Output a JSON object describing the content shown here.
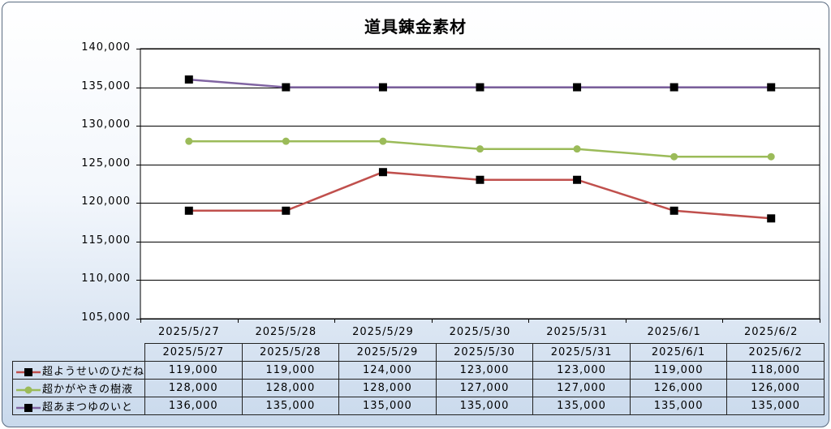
{
  "chart_data": {
    "type": "line",
    "title": "道具錬金素材",
    "x": [
      "2025/5/27",
      "2025/5/28",
      "2025/5/29",
      "2025/5/30",
      "2025/5/31",
      "2025/6/1",
      "2025/6/2"
    ],
    "ylim": [
      105000,
      140000
    ],
    "yticks": [
      "105,000",
      "110,000",
      "115,000",
      "120,000",
      "125,000",
      "130,000",
      "135,000",
      "140,000"
    ],
    "ytick_values": [
      105000,
      110000,
      115000,
      120000,
      125000,
      130000,
      135000,
      140000
    ],
    "grid": true,
    "legend": "data-table",
    "series": [
      {
        "name": "超ようせいのひだね",
        "color": "#c0504d",
        "marker": "square",
        "marker_color": "#000000",
        "values": [
          119000,
          119000,
          124000,
          123000,
          123000,
          119000,
          118000
        ],
        "labels": [
          "119,000",
          "119,000",
          "124,000",
          "123,000",
          "123,000",
          "119,000",
          "118,000"
        ]
      },
      {
        "name": "超かがやきの樹液",
        "color": "#9bbb59",
        "marker": "circle",
        "marker_color": "#9bbb59",
        "values": [
          128000,
          128000,
          128000,
          127000,
          127000,
          126000,
          126000
        ],
        "labels": [
          "128,000",
          "128,000",
          "128,000",
          "127,000",
          "127,000",
          "126,000",
          "126,000"
        ]
      },
      {
        "name": "超あまつゆのいと",
        "color": "#8064a2",
        "marker": "square",
        "marker_color": "#000000",
        "values": [
          136000,
          135000,
          135000,
          135000,
          135000,
          135000,
          135000
        ],
        "labels": [
          "136,000",
          "135,000",
          "135,000",
          "135,000",
          "135,000",
          "135,000",
          "135,000"
        ]
      }
    ]
  }
}
